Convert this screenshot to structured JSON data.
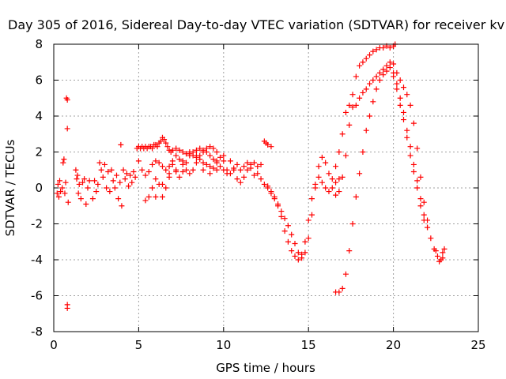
{
  "chart_data": {
    "type": "scatter",
    "title": "Day 305 of 2016, Sidereal Day-to-day VTEC variation (SDTVAR) for receiver kv",
    "xlabel": "GPS time / hours",
    "ylabel": "SDTVAR / TECUs",
    "xlim": [
      0,
      25
    ],
    "ylim": [
      -8,
      8
    ],
    "xticks": [
      0,
      5,
      10,
      15,
      20,
      25
    ],
    "yticks": [
      -8,
      -6,
      -4,
      -2,
      0,
      2,
      4,
      6,
      8
    ],
    "grid": true,
    "marker": "plus",
    "color": "#ff0000",
    "series": [
      {
        "points": [
          [
            0.2,
            -0.3
          ],
          [
            0.25,
            0.2
          ],
          [
            0.3,
            -0.5
          ],
          [
            0.35,
            0.4
          ],
          [
            0.4,
            -0.2
          ],
          [
            0.5,
            0.0
          ],
          [
            0.55,
            1.4
          ],
          [
            0.6,
            1.6
          ],
          [
            0.65,
            -0.3
          ],
          [
            0.7,
            0.3
          ],
          [
            0.75,
            5.0
          ],
          [
            0.8,
            4.9
          ],
          [
            0.8,
            3.3
          ],
          [
            0.8,
            -6.5
          ],
          [
            0.8,
            -6.7
          ],
          [
            0.85,
            -0.8
          ],
          [
            1.3,
            1.0
          ],
          [
            1.35,
            0.5
          ],
          [
            1.4,
            0.7
          ],
          [
            1.45,
            -0.3
          ],
          [
            1.5,
            0.2
          ],
          [
            1.6,
            -0.6
          ],
          [
            1.7,
            0.3
          ],
          [
            1.8,
            0.5
          ],
          [
            1.9,
            -0.9
          ],
          [
            2.0,
            0.0
          ],
          [
            2.1,
            0.4
          ],
          [
            2.3,
            -0.6
          ],
          [
            2.4,
            0.4
          ],
          [
            2.5,
            -0.2
          ],
          [
            2.6,
            0.2
          ],
          [
            2.7,
            1.4
          ],
          [
            2.8,
            1.0
          ],
          [
            2.9,
            0.6
          ],
          [
            3.0,
            1.3
          ],
          [
            3.1,
            0.0
          ],
          [
            3.2,
            0.9
          ],
          [
            3.3,
            -0.2
          ],
          [
            3.4,
            1.0
          ],
          [
            3.5,
            0.4
          ],
          [
            3.6,
            0.0
          ],
          [
            3.7,
            0.7
          ],
          [
            3.8,
            -0.6
          ],
          [
            3.9,
            0.3
          ],
          [
            3.95,
            2.4
          ],
          [
            4.0,
            -1.0
          ],
          [
            4.1,
            1.0
          ],
          [
            4.2,
            0.5
          ],
          [
            4.3,
            0.8
          ],
          [
            4.4,
            0.1
          ],
          [
            4.5,
            0.7
          ],
          [
            4.6,
            0.3
          ],
          [
            4.7,
            0.9
          ],
          [
            4.8,
            0.6
          ],
          [
            4.9,
            2.2
          ],
          [
            5.0,
            2.3
          ],
          [
            5.1,
            2.2
          ],
          [
            5.2,
            2.3
          ],
          [
            5.3,
            2.2
          ],
          [
            5.4,
            2.3
          ],
          [
            5.5,
            2.2
          ],
          [
            5.6,
            2.3
          ],
          [
            5.7,
            2.3
          ],
          [
            5.8,
            2.2
          ],
          [
            5.9,
            2.4
          ],
          [
            6.0,
            2.4
          ],
          [
            6.1,
            2.3
          ],
          [
            6.2,
            2.5
          ],
          [
            6.3,
            2.6
          ],
          [
            6.4,
            2.8
          ],
          [
            6.5,
            2.7
          ],
          [
            6.6,
            2.5
          ],
          [
            6.7,
            2.3
          ],
          [
            6.8,
            2.1
          ],
          [
            6.9,
            2.0
          ],
          [
            7.0,
            2.1
          ],
          [
            7.2,
            2.2
          ],
          [
            7.4,
            2.1
          ],
          [
            7.6,
            2.0
          ],
          [
            7.8,
            1.9
          ],
          [
            8.0,
            1.9
          ],
          [
            8.2,
            1.8
          ],
          [
            8.4,
            1.7
          ],
          [
            8.6,
            1.6
          ],
          [
            8.8,
            1.4
          ],
          [
            9.0,
            1.3
          ],
          [
            9.2,
            1.2
          ],
          [
            9.4,
            1.1
          ],
          [
            9.6,
            1.0
          ],
          [
            5.0,
            1.5
          ],
          [
            5.2,
            1.0
          ],
          [
            5.4,
            0.7
          ],
          [
            5.6,
            0.9
          ],
          [
            5.8,
            1.3
          ],
          [
            6.0,
            1.5
          ],
          [
            6.2,
            1.4
          ],
          [
            6.4,
            1.2
          ],
          [
            6.6,
            1.0
          ],
          [
            6.8,
            1.2
          ],
          [
            7.0,
            1.5
          ],
          [
            7.2,
            1.8
          ],
          [
            7.4,
            1.6
          ],
          [
            7.6,
            1.3
          ],
          [
            7.8,
            1.0
          ],
          [
            8.0,
            0.8
          ],
          [
            8.2,
            1.0
          ],
          [
            8.4,
            1.4
          ],
          [
            8.6,
            1.8
          ],
          [
            8.8,
            2.0
          ],
          [
            9.0,
            2.2
          ],
          [
            9.2,
            2.3
          ],
          [
            9.4,
            2.2
          ],
          [
            9.6,
            2.0
          ],
          [
            9.8,
            1.7
          ],
          [
            10.0,
            1.5
          ],
          [
            5.4,
            -0.7
          ],
          [
            5.6,
            -0.5
          ],
          [
            5.8,
            0.0
          ],
          [
            6.0,
            0.5
          ],
          [
            6.2,
            0.2
          ],
          [
            6.4,
            -0.5
          ],
          [
            6.6,
            0.0
          ],
          [
            6.8,
            0.8
          ],
          [
            7.0,
            1.3
          ],
          [
            7.2,
            0.9
          ],
          [
            7.4,
            0.6
          ],
          [
            7.6,
            0.9
          ],
          [
            7.8,
            1.4
          ],
          [
            8.0,
            1.8
          ],
          [
            8.2,
            2.0
          ],
          [
            8.4,
            2.1
          ],
          [
            8.6,
            2.2
          ],
          [
            8.8,
            2.1
          ],
          [
            9.0,
            2.0
          ],
          [
            9.2,
            1.8
          ],
          [
            9.4,
            1.6
          ],
          [
            9.6,
            1.4
          ],
          [
            9.8,
            1.2
          ],
          [
            10.0,
            1.0
          ],
          [
            10.2,
            0.8
          ],
          [
            6.0,
            -0.5
          ],
          [
            6.4,
            0.2
          ],
          [
            6.8,
            0.6
          ],
          [
            7.2,
            1.0
          ],
          [
            7.6,
            1.5
          ],
          [
            8.0,
            2.0
          ],
          [
            8.4,
            1.8
          ],
          [
            8.8,
            1.0
          ],
          [
            9.2,
            0.8
          ],
          [
            9.6,
            1.5
          ],
          [
            10.0,
            1.8
          ],
          [
            10.4,
            1.5
          ],
          [
            10.6,
            1.0
          ],
          [
            10.8,
            0.5
          ],
          [
            11.0,
            0.3
          ],
          [
            11.2,
            0.6
          ],
          [
            11.4,
            1.0
          ],
          [
            11.6,
            1.3
          ],
          [
            11.8,
            1.4
          ],
          [
            12.0,
            1.2
          ],
          [
            12.2,
            1.3
          ],
          [
            12.4,
            2.6
          ],
          [
            12.5,
            2.5
          ],
          [
            12.6,
            2.4
          ],
          [
            12.8,
            2.3
          ],
          [
            10.2,
            1.0
          ],
          [
            10.4,
            0.8
          ],
          [
            10.6,
            1.1
          ],
          [
            10.8,
            1.3
          ],
          [
            11.0,
            1.0
          ],
          [
            11.2,
            1.2
          ],
          [
            11.4,
            1.4
          ],
          [
            11.6,
            1.1
          ],
          [
            11.8,
            0.7
          ],
          [
            12.0,
            0.8
          ],
          [
            12.2,
            0.5
          ],
          [
            12.4,
            0.2
          ],
          [
            12.6,
            0.0
          ],
          [
            12.8,
            -0.2
          ],
          [
            13.0,
            -0.5
          ],
          [
            13.2,
            -0.9
          ],
          [
            13.4,
            -1.3
          ],
          [
            13.6,
            -1.7
          ],
          [
            13.8,
            -2.1
          ],
          [
            14.0,
            -2.6
          ],
          [
            14.2,
            -3.1
          ],
          [
            14.4,
            -3.6
          ],
          [
            14.6,
            -3.9
          ],
          [
            14.8,
            -3.6
          ],
          [
            15.0,
            -2.8
          ],
          [
            15.2,
            -1.5
          ],
          [
            15.4,
            0.0
          ],
          [
            15.6,
            1.2
          ],
          [
            15.8,
            1.7
          ],
          [
            16.0,
            1.4
          ],
          [
            16.2,
            0.8
          ],
          [
            16.4,
            0.5
          ],
          [
            16.6,
            0.3
          ],
          [
            16.8,
            0.5
          ],
          [
            12.6,
            0.1
          ],
          [
            12.8,
            -0.3
          ],
          [
            13.0,
            -0.6
          ],
          [
            13.2,
            -1.0
          ],
          [
            13.4,
            -1.6
          ],
          [
            13.6,
            -2.4
          ],
          [
            13.8,
            -3.0
          ],
          [
            14.0,
            -3.5
          ],
          [
            14.2,
            -3.8
          ],
          [
            14.4,
            -4.0
          ],
          [
            14.6,
            -3.7
          ],
          [
            14.8,
            -3.0
          ],
          [
            15.0,
            -1.8
          ],
          [
            15.2,
            -0.6
          ],
          [
            15.4,
            0.2
          ],
          [
            15.6,
            0.6
          ],
          [
            15.8,
            0.3
          ],
          [
            16.0,
            0.0
          ],
          [
            16.2,
            -0.2
          ],
          [
            16.4,
            0.0
          ],
          [
            16.6,
            -0.4
          ],
          [
            16.8,
            -0.2
          ],
          [
            17.0,
            0.6
          ],
          [
            17.2,
            1.8
          ],
          [
            17.4,
            3.5
          ],
          [
            17.6,
            5.2
          ],
          [
            17.8,
            6.2
          ],
          [
            18.0,
            6.8
          ],
          [
            18.2,
            7.0
          ],
          [
            18.4,
            7.2
          ],
          [
            18.6,
            7.4
          ],
          [
            18.8,
            7.6
          ],
          [
            19.0,
            7.7
          ],
          [
            19.2,
            7.8
          ],
          [
            19.4,
            7.8
          ],
          [
            19.6,
            7.9
          ],
          [
            19.8,
            7.8
          ],
          [
            20.0,
            7.9
          ],
          [
            20.1,
            8.0
          ],
          [
            16.6,
            1.2
          ],
          [
            16.8,
            2.0
          ],
          [
            17.0,
            3.0
          ],
          [
            17.2,
            4.2
          ],
          [
            17.4,
            4.6
          ],
          [
            17.6,
            4.5
          ],
          [
            17.8,
            4.6
          ],
          [
            18.0,
            5.0
          ],
          [
            18.2,
            5.3
          ],
          [
            18.4,
            5.5
          ],
          [
            18.6,
            5.8
          ],
          [
            18.8,
            6.0
          ],
          [
            19.0,
            6.2
          ],
          [
            19.2,
            6.4
          ],
          [
            19.4,
            6.6
          ],
          [
            19.6,
            6.8
          ],
          [
            19.8,
            7.0
          ],
          [
            20.0,
            6.4
          ],
          [
            20.2,
            5.8
          ],
          [
            20.4,
            5.0
          ],
          [
            20.6,
            4.2
          ],
          [
            20.8,
            3.2
          ],
          [
            21.0,
            2.3
          ],
          [
            21.2,
            1.3
          ],
          [
            21.4,
            0.4
          ],
          [
            21.6,
            -0.6
          ],
          [
            21.8,
            -1.5
          ],
          [
            22.0,
            -2.2
          ],
          [
            16.6,
            -5.8
          ],
          [
            16.8,
            -5.8
          ],
          [
            17.0,
            -5.6
          ],
          [
            17.2,
            -4.8
          ],
          [
            17.4,
            -3.5
          ],
          [
            17.6,
            -2.0
          ],
          [
            17.8,
            -0.5
          ],
          [
            18.0,
            0.8
          ],
          [
            18.2,
            2.0
          ],
          [
            18.4,
            3.2
          ],
          [
            18.6,
            4.0
          ],
          [
            18.8,
            4.8
          ],
          [
            19.0,
            5.5
          ],
          [
            19.2,
            6.0
          ],
          [
            19.4,
            6.3
          ],
          [
            19.6,
            6.5
          ],
          [
            19.8,
            6.7
          ],
          [
            20.0,
            6.2
          ],
          [
            20.2,
            5.5
          ],
          [
            20.4,
            4.6
          ],
          [
            20.6,
            3.8
          ],
          [
            20.8,
            2.8
          ],
          [
            21.0,
            1.8
          ],
          [
            21.2,
            0.9
          ],
          [
            21.4,
            0.0
          ],
          [
            21.6,
            -1.0
          ],
          [
            21.8,
            -1.8
          ],
          [
            22.0,
            -2.2
          ],
          [
            20.0,
            6.9
          ],
          [
            20.2,
            6.4
          ],
          [
            20.4,
            6.0
          ],
          [
            20.6,
            5.6
          ],
          [
            20.8,
            5.2
          ],
          [
            21.0,
            4.6
          ],
          [
            21.2,
            3.6
          ],
          [
            21.4,
            2.2
          ],
          [
            21.6,
            0.6
          ],
          [
            21.8,
            -0.8
          ],
          [
            22.0,
            -1.8
          ],
          [
            22.2,
            -2.8
          ],
          [
            22.4,
            -3.4
          ],
          [
            22.6,
            -3.8
          ],
          [
            22.8,
            -4.0
          ],
          [
            22.9,
            -3.6
          ],
          [
            23.0,
            -3.4
          ],
          [
            22.5,
            -3.5
          ],
          [
            22.7,
            -4.1
          ],
          [
            22.9,
            -3.9
          ]
        ]
      }
    ]
  }
}
